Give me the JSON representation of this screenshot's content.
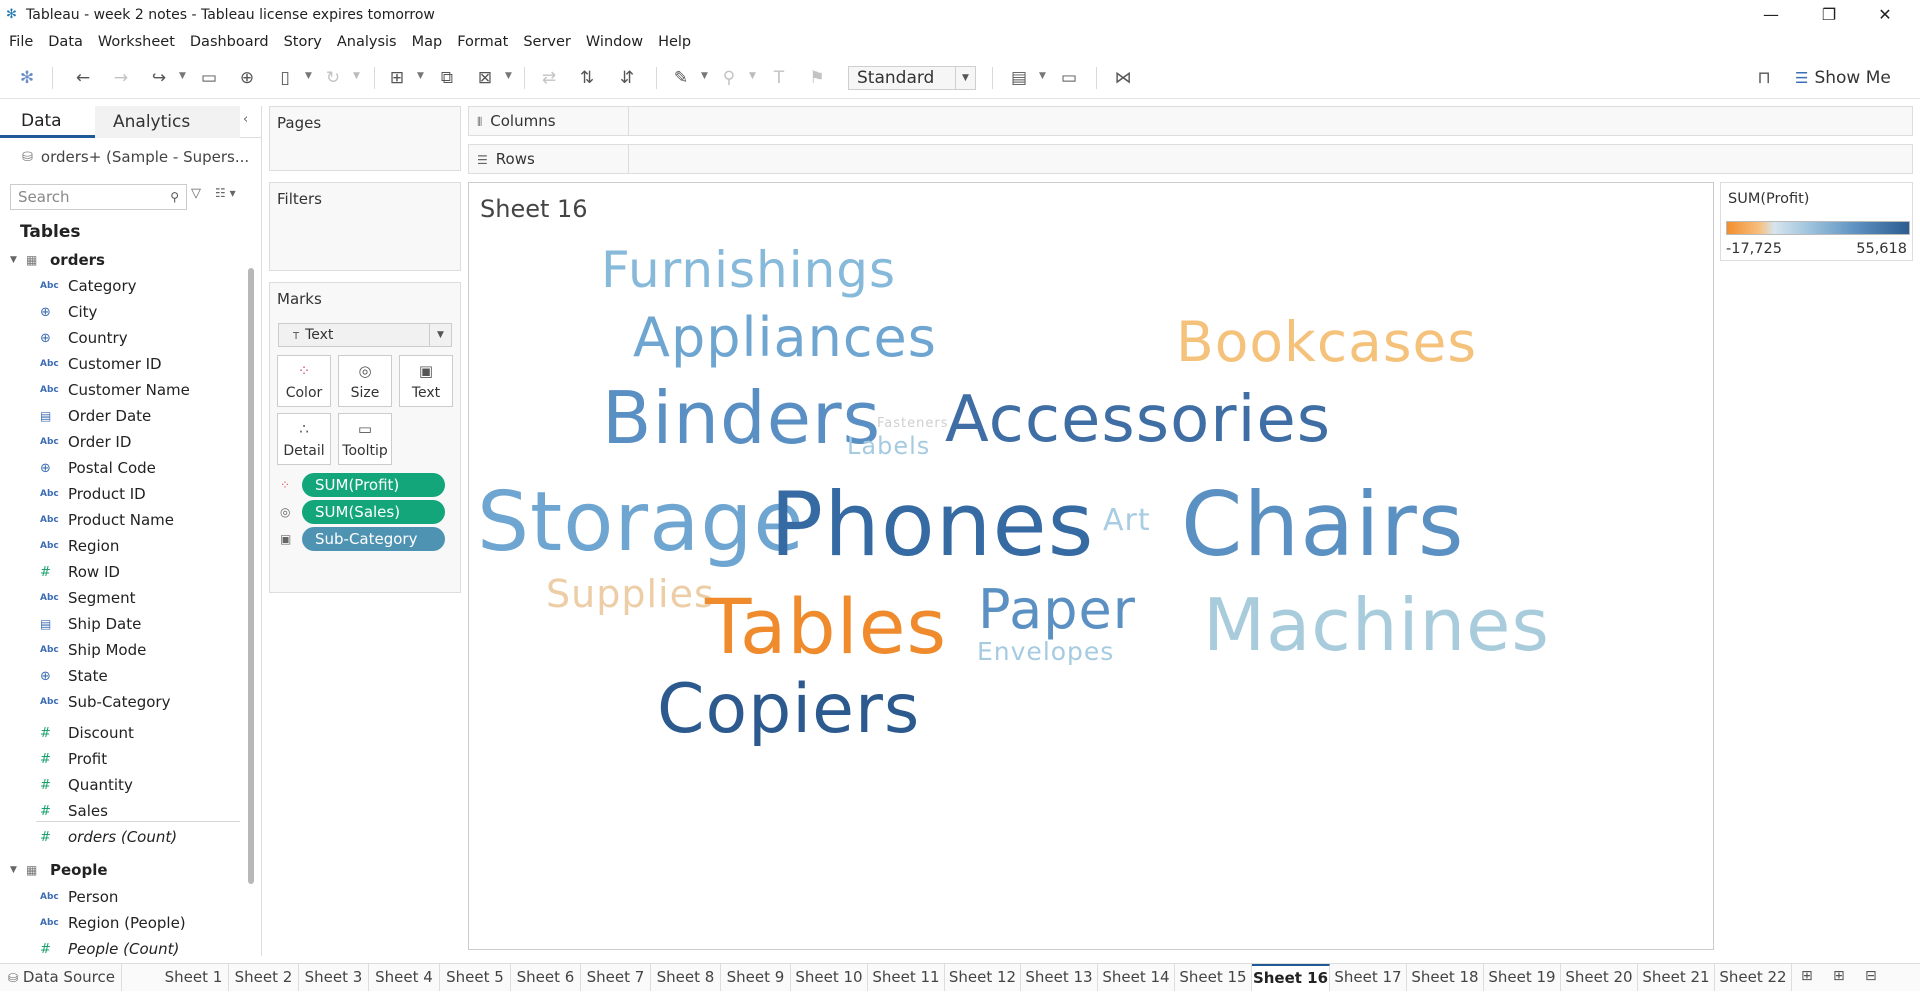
{
  "window": {
    "title": "Tableau - week 2 notes - Tableau license expires tomorrow"
  },
  "menu": [
    "File",
    "Data",
    "Worksheet",
    "Dashboard",
    "Story",
    "Analysis",
    "Map",
    "Format",
    "Server",
    "Window",
    "Help"
  ],
  "toolbar": {
    "fit": "Standard",
    "show_me": "Show Me"
  },
  "data_pane": {
    "tab_data": "Data",
    "tab_analytics": "Analytics",
    "datasource": "orders+ (Sample - Supers...",
    "search_placeholder": "Search",
    "tables_heading": "Tables",
    "table1": "orders",
    "fields": [
      "Category",
      "City",
      "Country",
      "Customer ID",
      "Customer Name",
      "Order Date",
      "Order ID",
      "Postal Code",
      "Product ID",
      "Product Name",
      "Region",
      "Row ID",
      "Segment",
      "Ship Date",
      "Ship Mode",
      "State",
      "Sub-Category",
      "Discount",
      "Profit",
      "Quantity",
      "Sales",
      "orders (Count)"
    ],
    "field_types": [
      "Abc",
      "globe",
      "globe",
      "Abc",
      "Abc",
      "date",
      "Abc",
      "globe",
      "Abc",
      "Abc",
      "Abc",
      "#",
      "Abc",
      "date",
      "Abc",
      "globe",
      "Abc",
      "#",
      "#",
      "#",
      "#",
      "#"
    ],
    "table2": "People",
    "fields2": [
      "Person",
      "Region (People)",
      "People (Count)"
    ],
    "field_types2": [
      "Abc",
      "Abc",
      "#"
    ]
  },
  "shelves": {
    "pages": "Pages",
    "filters": "Filters",
    "marks": "Marks",
    "columns": "Columns",
    "rows": "Rows"
  },
  "marks": {
    "type": "Text",
    "buttons": {
      "color": "Color",
      "size": "Size",
      "text": "Text",
      "detail": "Detail",
      "tooltip": "Tooltip"
    },
    "pills": [
      "SUM(Profit)",
      "SUM(Sales)",
      "Sub-Category"
    ]
  },
  "view": {
    "sheet_title": "Sheet 16",
    "words": [
      {
        "text": "Furnishings",
        "color": "#86b9da"
      },
      {
        "text": "Appliances",
        "color": "#6ea6d1"
      },
      {
        "text": "Bookcases",
        "color": "#f5c27c"
      },
      {
        "text": "Binders",
        "color": "#5a8fc3"
      },
      {
        "text": "Fasteners",
        "color": "#cfcfcf"
      },
      {
        "text": "Labels",
        "color": "#a6cbe1"
      },
      {
        "text": "Accessories",
        "color": "#3f6ea5"
      },
      {
        "text": "Storage",
        "color": "#6ea6d1"
      },
      {
        "text": "Phones",
        "color": "#356aa3"
      },
      {
        "text": "Art",
        "color": "#a8cce2"
      },
      {
        "text": "Chairs",
        "color": "#5b90c2"
      },
      {
        "text": "Supplies",
        "color": "#edcda6"
      },
      {
        "text": "Tables",
        "color": "#ef8b2c"
      },
      {
        "text": "Paper",
        "color": "#5b90c2"
      },
      {
        "text": "Machines",
        "color": "#a9ccdd"
      },
      {
        "text": "Envelopes",
        "color": "#a6cbe1"
      },
      {
        "text": "Copiers",
        "color": "#2c5a8f"
      }
    ]
  },
  "legend": {
    "title": "SUM(Profit)",
    "min": "-17,725",
    "max": "55,618",
    "color_low": "#f28e2c",
    "color_high": "#2c5d91"
  },
  "tabs_bar": {
    "data_source": "Data Source",
    "sheets": [
      "Sheet 1",
      "Sheet 2",
      "Sheet 3",
      "Sheet 4",
      "Sheet 5",
      "Sheet 6",
      "Sheet 7",
      "Sheet 8",
      "Sheet 9",
      "Sheet 10",
      "Sheet 11",
      "Sheet 12",
      "Sheet 13",
      "Sheet 14",
      "Sheet 15",
      "Sheet 16",
      "Sheet 17",
      "Sheet 18",
      "Sheet 19",
      "Sheet 20",
      "Sheet 21",
      "Sheet 22"
    ],
    "active": "Sheet 16"
  }
}
